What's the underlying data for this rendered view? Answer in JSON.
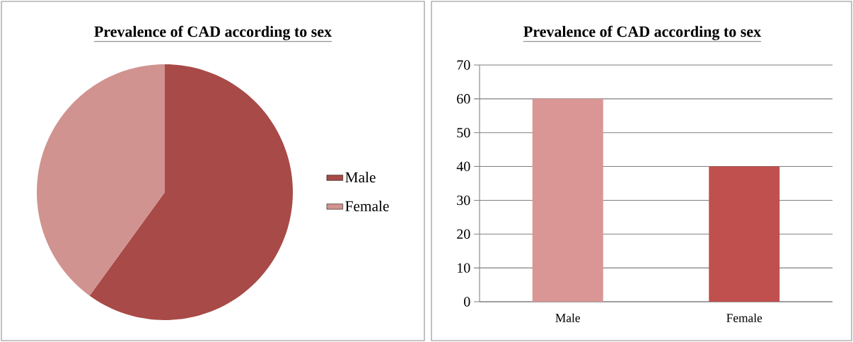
{
  "chart_data": [
    {
      "type": "pie",
      "title": "Prevalence of CAD according to sex",
      "categories": [
        "Male",
        "Female"
      ],
      "values": [
        60,
        40
      ],
      "colors": [
        "#a84a47",
        "#d09390"
      ],
      "legend": "right"
    },
    {
      "type": "bar",
      "title": "Prevalence of CAD according to sex",
      "categories": [
        "Male",
        "Female"
      ],
      "values": [
        60,
        40
      ],
      "colors": [
        "#d99694",
        "#c0504d"
      ],
      "ylim": [
        0,
        70
      ],
      "yticks": [
        0,
        10,
        20,
        30,
        40,
        50,
        60,
        70
      ],
      "grid": "y"
    }
  ]
}
